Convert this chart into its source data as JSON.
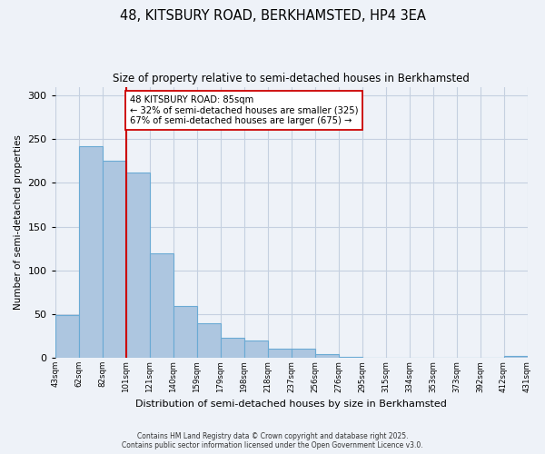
{
  "title": "48, KITSBURY ROAD, BERKHAMSTED, HP4 3EA",
  "subtitle": "Size of property relative to semi-detached houses in Berkhamsted",
  "xlabel": "Distribution of semi-detached houses by size in Berkhamsted",
  "ylabel": "Number of semi-detached properties",
  "bar_values": [
    49,
    242,
    225,
    212,
    119,
    59,
    40,
    23,
    20,
    10,
    10,
    4,
    1,
    0,
    0,
    0,
    0,
    0,
    0,
    2
  ],
  "bar_labels": [
    "43sqm",
    "62sqm",
    "82sqm",
    "101sqm",
    "121sqm",
    "140sqm",
    "159sqm",
    "179sqm",
    "198sqm",
    "218sqm",
    "237sqm",
    "256sqm",
    "276sqm",
    "295sqm",
    "315sqm",
    "334sqm",
    "353sqm",
    "373sqm",
    "392sqm",
    "412sqm",
    "431sqm"
  ],
  "bar_color": "#adc6e0",
  "bar_edge_color": "#6aaad4",
  "red_line_x": 2.5,
  "red_line_color": "#cc0000",
  "ylim": [
    0,
    310
  ],
  "yticks": [
    0,
    50,
    100,
    150,
    200,
    250,
    300
  ],
  "annotation_title": "48 KITSBURY ROAD: 85sqm",
  "annotation_line1": "← 32% of semi-detached houses are smaller (325)",
  "annotation_line2": "67% of semi-detached houses are larger (675) →",
  "annotation_box_color": "#ffffff",
  "annotation_box_edge": "#cc0000",
  "footer1": "Contains HM Land Registry data © Crown copyright and database right 2025.",
  "footer2": "Contains public sector information licensed under the Open Government Licence v3.0.",
  "bg_color": "#eef2f8",
  "grid_color": "#c5d0e0"
}
